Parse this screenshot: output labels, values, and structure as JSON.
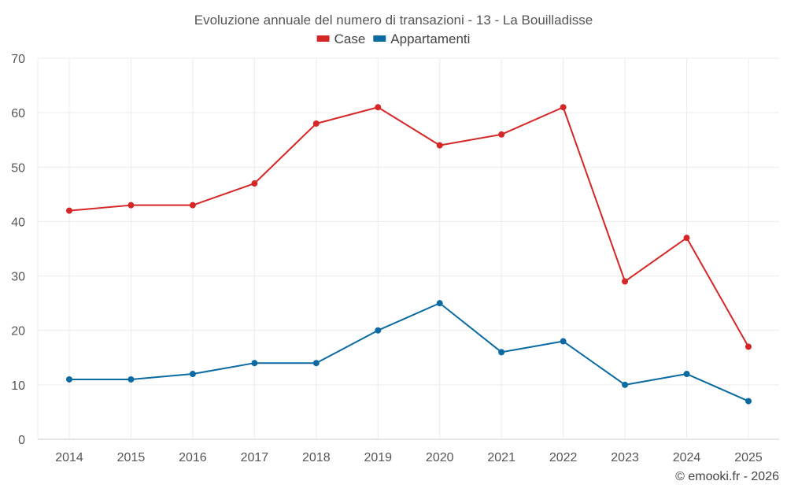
{
  "chart_data": {
    "type": "line",
    "title": "Evoluzione annuale del numero di transazioni - 13 - La Bouilladisse",
    "categories": [
      "2014",
      "2015",
      "2016",
      "2017",
      "2018",
      "2019",
      "2020",
      "2021",
      "2022",
      "2023",
      "2024",
      "2025"
    ],
    "series": [
      {
        "name": "Case",
        "color": "#d62728",
        "values": [
          42,
          43,
          43,
          47,
          58,
          61,
          54,
          56,
          61,
          29,
          37,
          17
        ]
      },
      {
        "name": "Appartamenti",
        "color": "#0b6aa2",
        "values": [
          11,
          11,
          12,
          14,
          14,
          20,
          25,
          16,
          18,
          10,
          12,
          7
        ]
      }
    ],
    "ylim": [
      0,
      70
    ],
    "yticks": [
      0,
      10,
      20,
      30,
      40,
      50,
      60,
      70
    ],
    "xlabel": "",
    "ylabel": "",
    "grid": true,
    "legend": "top-center"
  },
  "footer": {
    "copyright": "© emooki.fr - 2026"
  }
}
